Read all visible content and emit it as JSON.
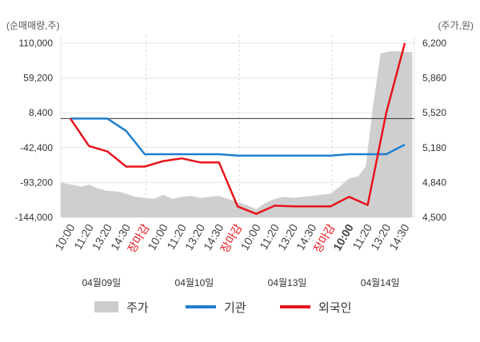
{
  "chart_data": {
    "type": "line",
    "left_unit": "(순매매량,주)",
    "right_unit": "(주가,원)",
    "y_left_ticks": [
      "110,000",
      "59,200",
      "8,400",
      "-42,400",
      "-93,200",
      "-144,000"
    ],
    "y_right_ticks": [
      "6,200",
      "5,860",
      "5,520",
      "5,180",
      "4,840",
      "4,500"
    ],
    "ylim_left": [
      -144000,
      110000
    ],
    "ylim_right": [
      4500,
      6200
    ],
    "x_tick_labels": [
      "10:00",
      "11:20",
      "13:20",
      "14:30",
      "장마감",
      "10:00",
      "11:20",
      "13:20",
      "14:30",
      "장마감",
      "10:00",
      "11:20",
      "13:20",
      "14:30",
      "장마감",
      "10:00",
      "11:20",
      "13:20",
      "14:30"
    ],
    "x_tick_red": [
      4,
      9,
      14
    ],
    "x_tick_bold": [
      15
    ],
    "dates": [
      "04월09일",
      "04월10일",
      "04월13일",
      "04월14일"
    ],
    "reference_line_left": 0,
    "series": [
      {
        "name": "주가",
        "kind": "area",
        "axis": "right",
        "color": "#cccccc",
        "points": [
          [
            0,
            4840
          ],
          [
            0.6,
            4800
          ],
          [
            1,
            4820
          ],
          [
            1.5,
            4780
          ],
          [
            2,
            4760
          ],
          [
            2.6,
            4750
          ],
          [
            3,
            4730
          ],
          [
            3.5,
            4700
          ],
          [
            4,
            4690
          ],
          [
            4.5,
            4680
          ],
          [
            5,
            4720
          ],
          [
            5.5,
            4680
          ],
          [
            6,
            4700
          ],
          [
            6.5,
            4710
          ],
          [
            7,
            4690
          ],
          [
            7.5,
            4700
          ],
          [
            8,
            4710
          ],
          [
            8.5,
            4680
          ],
          [
            9,
            4650
          ],
          [
            9.5,
            4620
          ],
          [
            10,
            4580
          ],
          [
            10.5,
            4640
          ],
          [
            11,
            4680
          ],
          [
            11.5,
            4700
          ],
          [
            12,
            4690
          ],
          [
            12.5,
            4700
          ],
          [
            13,
            4710
          ],
          [
            13.5,
            4720
          ],
          [
            14,
            4730
          ],
          [
            14.5,
            4800
          ],
          [
            15,
            4880
          ],
          [
            15.5,
            4900
          ],
          [
            15.9,
            5000
          ],
          [
            16.3,
            5600
          ],
          [
            16.7,
            6100
          ],
          [
            17.2,
            6120
          ],
          [
            17.7,
            6120
          ],
          [
            18.4,
            6110
          ]
        ]
      },
      {
        "name": "기관",
        "kind": "line",
        "axis": "left",
        "color": "#1f7fcf",
        "points": [
          [
            0,
            0
          ],
          [
            1,
            0
          ],
          [
            2,
            0
          ],
          [
            3,
            -18000
          ],
          [
            4,
            -52000
          ],
          [
            5,
            -52000
          ],
          [
            6,
            -52000
          ],
          [
            7,
            -52000
          ],
          [
            8,
            -52000
          ],
          [
            9,
            -54000
          ],
          [
            10,
            -54000
          ],
          [
            11,
            -54000
          ],
          [
            12,
            -54000
          ],
          [
            13,
            -54000
          ],
          [
            14,
            -54000
          ],
          [
            15,
            -52000
          ],
          [
            16,
            -52000
          ],
          [
            17,
            -52000
          ],
          [
            18,
            -38000
          ]
        ]
      },
      {
        "name": "외국인",
        "kind": "line",
        "axis": "left",
        "color": "#e8141c",
        "points": [
          [
            0,
            0
          ],
          [
            1,
            -40000
          ],
          [
            2,
            -48000
          ],
          [
            3,
            -70000
          ],
          [
            4,
            -70000
          ],
          [
            5,
            -62000
          ],
          [
            6,
            -58000
          ],
          [
            7,
            -64000
          ],
          [
            8,
            -64000
          ],
          [
            9,
            -128000
          ],
          [
            10,
            -139000
          ],
          [
            11,
            -127000
          ],
          [
            12,
            -128000
          ],
          [
            13,
            -128000
          ],
          [
            14,
            -128000
          ],
          [
            15,
            -114000
          ],
          [
            16,
            -126000
          ],
          [
            17,
            8400
          ],
          [
            18,
            110000
          ]
        ]
      }
    ]
  },
  "legend": [
    {
      "label": "주가",
      "color": "#cccccc",
      "kind": "area"
    },
    {
      "label": "기관",
      "color": "#1f7fcf",
      "kind": "line"
    },
    {
      "label": "외국인",
      "color": "#e8141c",
      "kind": "line"
    }
  ]
}
